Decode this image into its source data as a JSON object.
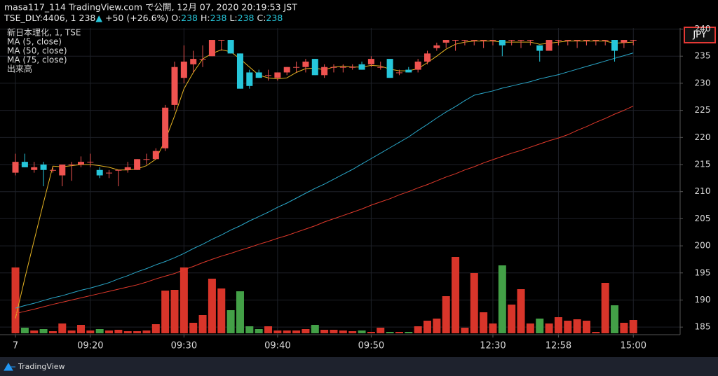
{
  "header": {
    "line1": "masa117_114 TradingView.com で公開, 12月 07, 2020 20:19:53 JST",
    "symbol": "TSE_DLY:4406, 1",
    "price": "238",
    "arrow": "▲",
    "change": "+50 (+26.6%)",
    "ohlc": [
      {
        "label": "O:",
        "value": "238"
      },
      {
        "label": "H:",
        "value": "238"
      },
      {
        "label": "L:",
        "value": "238"
      },
      {
        "label": "C:",
        "value": "238"
      }
    ]
  },
  "footer": "TradingView",
  "chart_data": {
    "type": "candlestick",
    "legend_title": "新日本理化, 1, TSE",
    "currency": "JPY",
    "up_color": "#ef5350",
    "down_color": "#26c6da",
    "open": [
      213.5,
      215.5,
      214,
      215,
      214,
      213,
      215,
      215,
      215.5,
      214,
      213.5,
      214,
      214,
      214,
      216,
      216,
      218,
      226,
      231,
      233.5,
      234.5,
      235,
      238,
      238,
      235.5,
      232,
      232,
      231.5,
      231,
      232,
      233,
      233,
      234.5,
      231.5,
      233,
      233,
      233,
      233.5,
      233.5,
      233,
      234.5,
      232,
      232.5,
      232.5,
      234,
      236.5,
      237.5,
      238,
      238,
      238,
      238,
      238,
      238,
      238,
      238,
      238,
      237,
      236,
      238,
      238,
      238,
      238,
      238,
      238,
      238,
      237.5,
      238
    ],
    "high": [
      217,
      217,
      215.5,
      215.5,
      214.5,
      215,
      215.5,
      216.5,
      217,
      214.5,
      214,
      214,
      215.5,
      216,
      217,
      218,
      226,
      234,
      237,
      236,
      237,
      238,
      238,
      238,
      235.5,
      232.5,
      232.5,
      232.5,
      232,
      233,
      234,
      234.5,
      234.5,
      233.5,
      233.5,
      233.5,
      233.5,
      234,
      235,
      234,
      234.5,
      232.5,
      233,
      234.5,
      236,
      237.5,
      238,
      238,
      238,
      238,
      238,
      238,
      238,
      238,
      238,
      238,
      237,
      238,
      238,
      238,
      238,
      238,
      238,
      238,
      238,
      238,
      238
    ],
    "low": [
      213,
      214.5,
      213.5,
      211,
      213.5,
      211,
      212,
      214.5,
      214.5,
      212.5,
      212.5,
      211,
      213.5,
      214,
      215,
      216,
      217.5,
      225,
      230,
      232,
      233,
      235,
      236,
      235.5,
      229,
      229,
      231,
      230.5,
      230.5,
      231.5,
      232,
      232,
      231.5,
      231,
      232,
      232,
      232.5,
      232.5,
      233,
      232.5,
      231,
      231.5,
      232,
      232,
      233.5,
      236,
      236.5,
      236,
      237,
      237,
      236.5,
      237,
      235,
      237,
      236.5,
      237,
      234,
      236,
      237,
      237,
      236.5,
      237,
      237,
      237,
      234,
      236.5,
      237
    ],
    "close": [
      215.5,
      214.5,
      214.5,
      214,
      214,
      215,
      215,
      215.5,
      215.5,
      213,
      213.5,
      214,
      214.5,
      216,
      216,
      217.5,
      225.5,
      233,
      234,
      234.5,
      234.5,
      238,
      238,
      235.5,
      229,
      229.5,
      231,
      231.5,
      232,
      233,
      233,
      234,
      231.5,
      233,
      233,
      233,
      233,
      232.5,
      234.5,
      233,
      231,
      232,
      232,
      234,
      235.5,
      237,
      238,
      238,
      238,
      238,
      238,
      238,
      237,
      238,
      238,
      238,
      236,
      238,
      238,
      238,
      238,
      238,
      238,
      238,
      236,
      238,
      238
    ],
    "series": [
      {
        "name": "MA (5, close)",
        "color": "#e6b422",
        "values": [
          186.6,
          194,
          201,
          208,
          214.7,
          214.6,
          214.8,
          215,
          215,
          214.8,
          214.5,
          214,
          214,
          214.2,
          214.8,
          216,
          219.5,
          224,
          229,
          232,
          234.5,
          235.5,
          236.2,
          235.8,
          234.5,
          233,
          231.5,
          231,
          230.8,
          231,
          232,
          232.7,
          232.8,
          232.5,
          233,
          233.2,
          233,
          233,
          233.3,
          233.2,
          232.6,
          232.3,
          232.3,
          232.7,
          233.8,
          235,
          236.3,
          237.2,
          237.6,
          237.8,
          237.8,
          237.8,
          237.6,
          237.6,
          237.6,
          237.6,
          237.2,
          237.4,
          237.6,
          237.8,
          237.8,
          237.8,
          237.8,
          237.8,
          237.4,
          237.5,
          237.6
        ]
      },
      {
        "name": "MA (50, close)",
        "color": "#2aa7c9",
        "values": [
          188.5,
          188.97,
          189.4,
          189.9,
          190.4,
          190.8,
          191.3,
          191.8,
          192.2,
          192.7,
          193.2,
          193.9,
          194.5,
          195.2,
          195.8,
          196.5,
          197.1,
          197.8,
          198.6,
          199.5,
          200.3,
          201.2,
          202,
          202.9,
          203.7,
          204.6,
          205.4,
          206.2,
          207.1,
          207.9,
          208.8,
          209.7,
          210.6,
          211.4,
          212.3,
          213.2,
          214.1,
          215.1,
          216.1,
          217.1,
          218.1,
          219.1,
          220.1,
          221.3,
          222.4,
          223.6,
          224.7,
          225.7,
          226.8,
          227.8,
          228.2,
          228.6,
          229.1,
          229.5,
          229.9,
          230.3,
          230.8,
          231.2,
          231.6,
          232.1,
          232.6,
          233.1,
          233.6,
          234.1,
          234.6,
          235.1,
          235.6
        ]
      },
      {
        "name": "MA (75, close)",
        "color": "#e0392b",
        "values": [
          187.5,
          187.9,
          188.3,
          188.75,
          189.2,
          189.6,
          190,
          190.4,
          190.8,
          191.2,
          191.6,
          192,
          192.4,
          192.8,
          193.3,
          193.9,
          194.4,
          194.9,
          195.6,
          196.2,
          196.9,
          197.5,
          198.1,
          198.6,
          199.2,
          199.7,
          200.3,
          200.8,
          201.4,
          201.9,
          202.5,
          203.1,
          203.7,
          204.4,
          205,
          205.6,
          206.2,
          206.8,
          207.5,
          208.1,
          208.7,
          209.4,
          210,
          210.7,
          211.3,
          212,
          212.7,
          213.3,
          214,
          214.6,
          215.3,
          215.9,
          216.5,
          217.1,
          217.6,
          218.2,
          218.8,
          219.4,
          219.9,
          220.5,
          221.3,
          222,
          222.8,
          223.5,
          224.3,
          225,
          225.8
        ]
      }
    ],
    "volume": {
      "name": "出来高",
      "up_color": "#d8352a",
      "down_color": "#43a047",
      "ylim": [
        0,
        436
      ],
      "values": [
        94,
        8,
        4,
        6,
        3,
        14,
        4,
        12,
        4,
        6,
        4,
        5,
        3,
        3,
        4,
        13,
        61,
        62,
        94,
        15,
        26,
        78,
        64,
        33,
        60,
        10,
        6,
        10,
        4,
        4,
        4,
        6,
        12,
        5,
        5,
        4,
        3,
        4,
        2,
        8,
        2,
        2,
        2,
        10,
        18,
        21,
        53,
        109,
        8,
        86,
        30,
        14,
        97,
        41,
        63,
        14,
        21,
        14,
        23,
        18,
        20,
        18,
        2,
        72,
        40,
        15,
        19
      ]
    },
    "ylim": [
      183.6,
      240.2
    ],
    "yticks": [
      185,
      190,
      195,
      200,
      205,
      210,
      215,
      220,
      225,
      230,
      235,
      240
    ],
    "xlim": [
      -1.65,
      71
    ],
    "xticks": [
      {
        "value": 0,
        "label": "7"
      },
      {
        "value": 8,
        "label": "09:20"
      },
      {
        "value": 18,
        "label": "09:30"
      },
      {
        "value": 28,
        "label": "09:40"
      },
      {
        "value": 38,
        "label": "09:50"
      },
      {
        "value": 51,
        "label": "12:30"
      },
      {
        "value": 58,
        "label": "12:58"
      },
      {
        "value": 66,
        "label": "15:00"
      }
    ],
    "grid": true
  }
}
